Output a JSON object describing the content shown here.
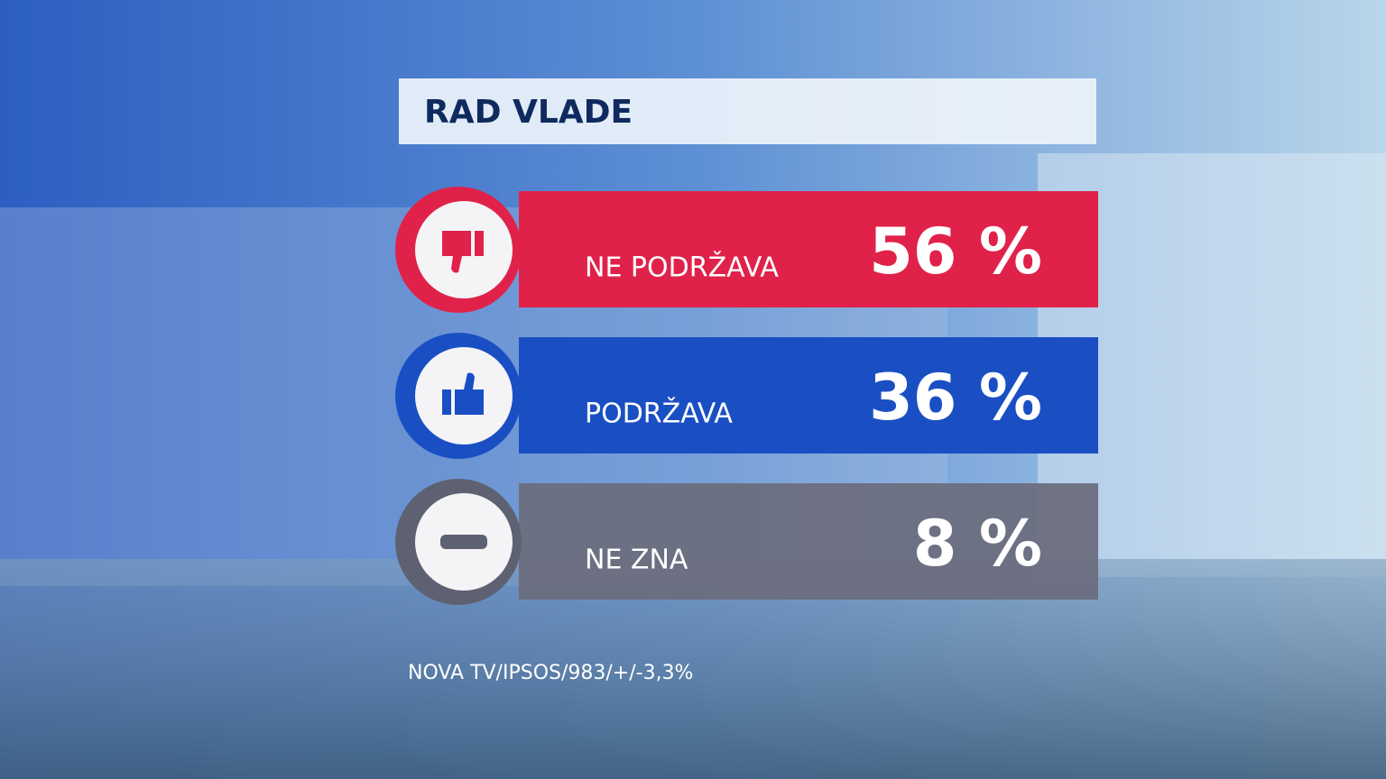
{
  "title": "RAD VLADE",
  "rows": [
    {
      "label": "NE PODRŽAVA",
      "value": "56 %"
    },
    {
      "label": "PODRŽAVA",
      "value": "36 %"
    },
    {
      "label": "NE ZNA",
      "value": "8 %"
    }
  ],
  "source": "NOVA TV/IPSOS/983/+/-3,3%"
}
